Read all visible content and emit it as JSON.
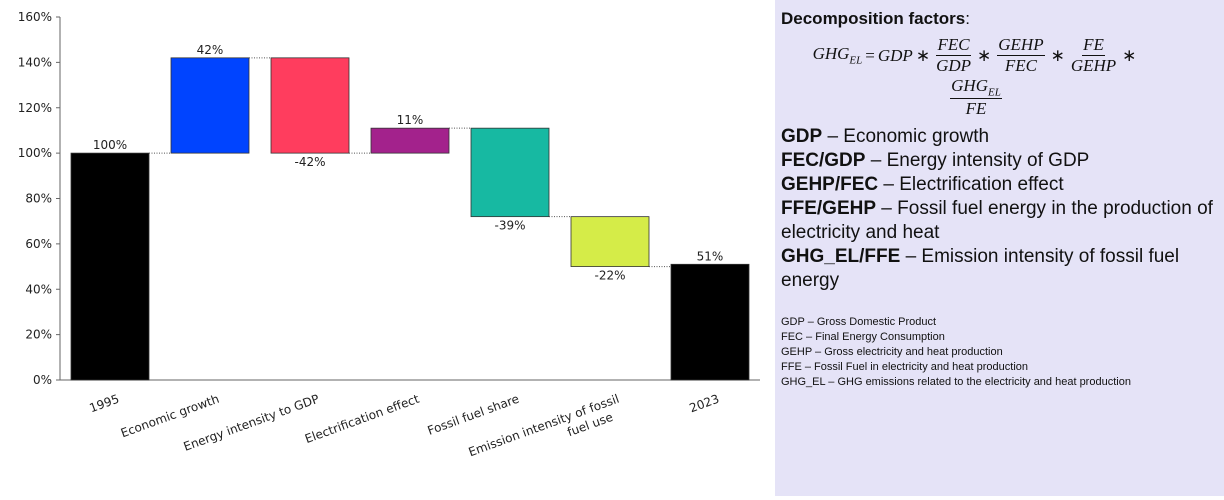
{
  "chart_data": {
    "type": "waterfall",
    "categories": [
      "1995",
      "Economic growth",
      "Energy intensity to GDP",
      "Electrification effect",
      "Fossil fuel share",
      "Emission intensity of  fossil fuel use",
      "2023"
    ],
    "values": [
      100,
      42,
      -42,
      11,
      -39,
      -22,
      51
    ],
    "value_labels": [
      "100%",
      "42%",
      "-42%",
      "11%",
      "-39%",
      "-22%",
      "51%"
    ],
    "measures": [
      "total",
      "relative",
      "relative",
      "relative",
      "relative",
      "relative",
      "total"
    ],
    "colors": [
      "#000000",
      "#0044ff",
      "#ff3d5e",
      "#a3228c",
      "#17b9a2",
      "#d5ec48",
      "#000000"
    ],
    "ylim": [
      0,
      160
    ],
    "yticks": [
      {
        "value": 0,
        "label": "0%"
      },
      {
        "value": 20,
        "label": "20%"
      },
      {
        "value": 40,
        "label": "40%"
      },
      {
        "value": 60,
        "label": "60%"
      },
      {
        "value": 80,
        "label": "80%"
      },
      {
        "value": 100,
        "label": "100%"
      },
      {
        "value": 120,
        "label": "120%"
      },
      {
        "value": 140,
        "label": "140%"
      },
      {
        "value": 160,
        "label": "160%"
      }
    ]
  },
  "panel": {
    "heading": "Decomposition factors",
    "heading_suffix": ":",
    "formula": {
      "lhs": "GHG",
      "lhs_sub": "EL",
      "equals": "=",
      "first": "GDP",
      "times": "∗",
      "fractions": [
        {
          "num": "FEC",
          "den": "GDP"
        },
        {
          "num": "GEHP",
          "den": "FEC"
        },
        {
          "num": "FE",
          "den": "GEHP"
        },
        {
          "num": "GHG",
          "num_sub": "EL",
          "den": "FE"
        }
      ]
    },
    "definitions": [
      {
        "term": "GDP",
        "text": " – Economic growth"
      },
      {
        "term": "FEC/GDP",
        "text": " – Energy intensity of GDP"
      },
      {
        "term": "GEHP/FEC",
        "text": " – Electrification effect"
      },
      {
        "term": "FFE/GEHP",
        "text": " – Fossil fuel energy in the production of electricity and heat"
      },
      {
        "term": "GHG_EL/FFE",
        "text": " – Emission intensity of fossil fuel energy"
      }
    ],
    "abbreviations": [
      "GDP – Gross Domestic Product",
      "FEC – Final Energy Consumption",
      "GEHP – Gross electricity and heat production",
      "FFE – Fossil Fuel in electricity and heat production",
      "GHG_EL – GHG emissions related to the electricity and heat production"
    ]
  }
}
